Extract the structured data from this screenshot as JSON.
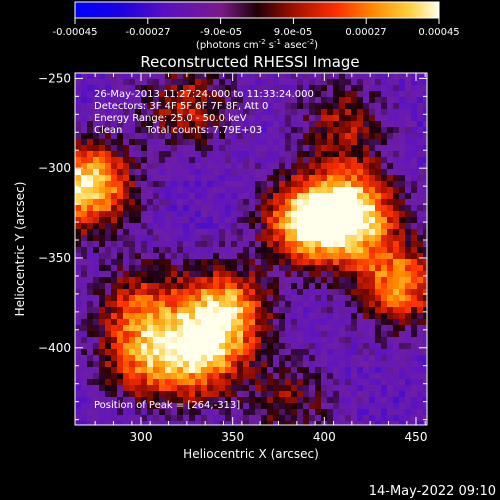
{
  "colorbar": {
    "ticks": [
      "-0.00045",
      "-0.00027",
      "-9.0e-05",
      "9.0e-05",
      "0.00027",
      "0.00045"
    ],
    "tick_values": [
      -0.00045,
      -0.00027,
      -9e-05,
      9e-05,
      0.00027,
      0.00045
    ],
    "units": "(photons cm",
    "units_sup1": "-2",
    "units_mid": " s",
    "units_sup2": "-1",
    "units_mid2": " asec",
    "units_sup3": "-2",
    "units_end": ")"
  },
  "annotation": {
    "line1": "26-May-2013 11:27:24.000 to 11:33:24.000",
    "line2": "Detectors: 3F 4F 5F 6F 7F 8F, Att 0",
    "line3": "Energy Range: 25.0 - 50.0 keV",
    "line4a": "Clean",
    "line4b": "Total counts: 7.79E+03",
    "peak": "Position of Peak = [264,-313]"
  },
  "footer": {
    "timestamp": "14-May-2022 09:10"
  },
  "chart_data": {
    "type": "heatmap",
    "title": "Reconstructed RHESSI Image",
    "xlabel": "Heliocentric X (arcsec)",
    "ylabel": "Heliocentric Y (arcsec)",
    "xlim": [
      264,
      456
    ],
    "ylim": [
      -443,
      -247
    ],
    "xticks": [
      300,
      350,
      400,
      450
    ],
    "yticks": [
      -250,
      -300,
      -350,
      -400
    ],
    "xtick_labels": [
      "300",
      "350",
      "400",
      "450"
    ],
    "ytick_labels": [
      "−250",
      "−300",
      "−350",
      "−400"
    ],
    "colorscale": "red-temperature with negative blues",
    "value_range": [
      -0.00045,
      0.00045
    ],
    "peak_position": [
      264,
      -313
    ],
    "bright_regions": [
      {
        "x": 270,
        "y": -310,
        "level": 0.00045
      },
      {
        "x": 415,
        "y": -325,
        "level": 0.00042
      },
      {
        "x": 390,
        "y": -330,
        "level": 0.00038
      },
      {
        "x": 345,
        "y": -380,
        "level": 0.00036
      },
      {
        "x": 330,
        "y": -405,
        "level": 0.00028
      },
      {
        "x": 300,
        "y": -405,
        "level": 0.00018
      },
      {
        "x": 300,
        "y": -375,
        "level": 0.00012
      },
      {
        "x": 440,
        "y": -365,
        "level": 0.00028
      },
      {
        "x": 325,
        "y": -265,
        "level": 0.00012
      },
      {
        "x": 410,
        "y": -275,
        "level": 9e-05
      },
      {
        "x": 380,
        "y": -430,
        "level": 5e-05
      }
    ]
  }
}
